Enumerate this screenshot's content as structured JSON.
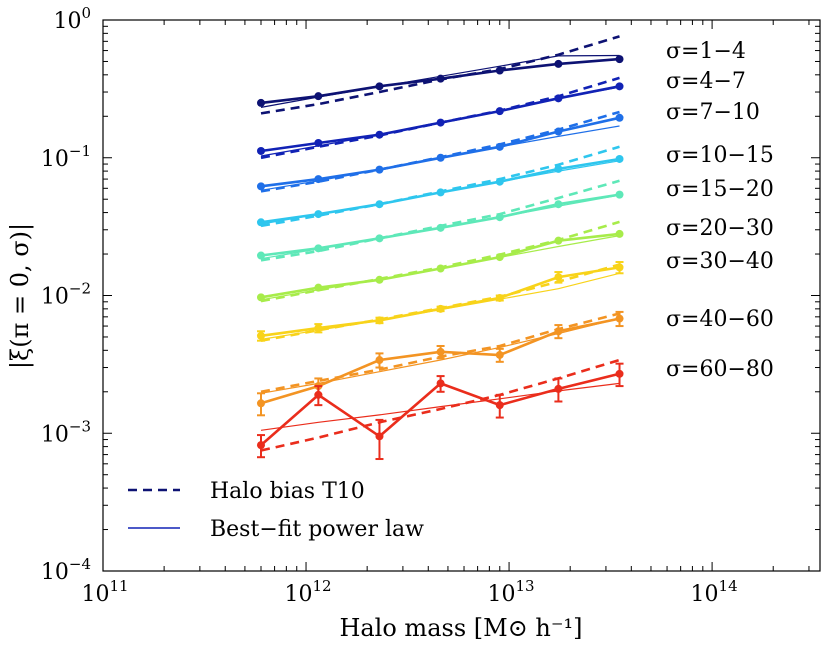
{
  "chart_data": {
    "type": "line",
    "xlabel": "Halo mass [M⊙ h⁻¹]",
    "ylabel": "|ξ(π = 0, σ)|",
    "xscale": "log",
    "yscale": "log",
    "xlim": [
      100000000000,
      340000000000000
    ],
    "ylim": [
      0.0001,
      1
    ],
    "x_ticks": [
      {
        "value": 100000000000,
        "base": "10",
        "exp": "11"
      },
      {
        "value": 1000000000000,
        "base": "10",
        "exp": "12"
      },
      {
        "value": 10000000000000,
        "base": "10",
        "exp": "13"
      },
      {
        "value": 100000000000000,
        "base": "10",
        "exp": "14"
      }
    ],
    "y_ticks": [
      {
        "value": 0.0001,
        "base": "10",
        "exp": "−4"
      },
      {
        "value": 0.001,
        "base": "10",
        "exp": "−3"
      },
      {
        "value": 0.01,
        "base": "10",
        "exp": "−2"
      },
      {
        "value": 0.1,
        "base": "10",
        "exp": "−1"
      },
      {
        "value": 1,
        "base": "10",
        "exp": "0"
      }
    ],
    "x": [
      600000000000.0,
      1150000000000.0,
      2300000000000.0,
      4600000000000.0,
      9000000000000.0,
      17500000000000.0,
      35000000000000.0
    ],
    "series": [
      {
        "name": "σ=1−4",
        "color": "#0d1273",
        "marker": "circle",
        "values": [
          0.25,
          0.28,
          0.33,
          0.375,
          0.43,
          0.48,
          0.52
        ],
        "errors": [
          0,
          0,
          0,
          0,
          0,
          0,
          0
        ],
        "bias": [
          0.21,
          0.245,
          0.3,
          0.37,
          0.44,
          0.56,
          0.76
        ],
        "fit": [
          0.232,
          0.276,
          0.328,
          0.39,
          0.462,
          0.549,
          0.552
        ]
      },
      {
        "name": "σ=4−7",
        "color": "#1122b5",
        "marker": "circle",
        "values": [
          0.112,
          0.128,
          0.147,
          0.18,
          0.218,
          0.27,
          0.33
        ],
        "errors": [
          0,
          0,
          0,
          0,
          0,
          0,
          0
        ],
        "bias": [
          0.1,
          0.12,
          0.145,
          0.18,
          0.22,
          0.28,
          0.38
        ],
        "fit": [
          0.103,
          0.122,
          0.147,
          0.18,
          0.22,
          0.27,
          0.325
        ]
      },
      {
        "name": "σ=7−10",
        "color": "#1f6fe8",
        "marker": "circle",
        "values": [
          0.062,
          0.07,
          0.082,
          0.1,
          0.12,
          0.155,
          0.195
        ],
        "errors": [
          0,
          0,
          0,
          0,
          0,
          0,
          0
        ],
        "bias": [
          0.057,
          0.067,
          0.082,
          0.101,
          0.125,
          0.16,
          0.215
        ],
        "fit": [
          0.058,
          0.068,
          0.082,
          0.1,
          0.12,
          0.143,
          0.17
        ]
      },
      {
        "name": "σ=10−15",
        "color": "#2ec6ee",
        "marker": "circle",
        "values": [
          0.034,
          0.039,
          0.046,
          0.056,
          0.067,
          0.083,
          0.098
        ],
        "errors": [
          0,
          0,
          0,
          0,
          0,
          0,
          0
        ],
        "bias": [
          0.032,
          0.038,
          0.046,
          0.057,
          0.07,
          0.089,
          0.12
        ],
        "fit": [
          0.033,
          0.039,
          0.046,
          0.056,
          0.067,
          0.08,
          0.095
        ]
      },
      {
        "name": "σ=15−20",
        "color": "#5ee8b8",
        "marker": "circle",
        "values": [
          0.0195,
          0.022,
          0.026,
          0.031,
          0.037,
          0.046,
          0.054
        ],
        "errors": [
          0,
          0,
          0,
          0,
          0,
          0,
          0
        ],
        "bias": [
          0.018,
          0.021,
          0.026,
          0.032,
          0.039,
          0.051,
          0.068
        ],
        "fit": [
          0.0185,
          0.0218,
          0.026,
          0.031,
          0.037,
          0.0445,
          0.0535
        ]
      },
      {
        "name": "σ=20−30",
        "color": "#a7ec4a",
        "marker": "circle",
        "values": [
          0.0097,
          0.0114,
          0.013,
          0.0157,
          0.019,
          0.025,
          0.028
        ],
        "errors": [
          0,
          0,
          0,
          0,
          0,
          0,
          0
        ],
        "bias": [
          0.0091,
          0.0109,
          0.0132,
          0.016,
          0.0198,
          0.0253,
          0.0342
        ],
        "fit": [
          0.0093,
          0.011,
          0.0131,
          0.0157,
          0.0189,
          0.0227,
          0.0272
        ]
      },
      {
        "name": "σ=30−40",
        "color": "#f8d31a",
        "marker": "circle",
        "values": [
          0.0051,
          0.0058,
          0.0066,
          0.008,
          0.0096,
          0.0136,
          0.016
        ],
        "errors": [
          0.0004,
          0.0004,
          0.0003,
          0.0003,
          0.0004,
          0.0012,
          0.0015
        ],
        "bias": [
          0.0047,
          0.0056,
          0.0067,
          0.0081,
          0.0098,
          0.0126,
          0.0168
        ],
        "fit": [
          0.0048,
          0.0056,
          0.0066,
          0.0079,
          0.0094,
          0.0112,
          0.0145
        ]
      },
      {
        "name": "σ=40−60",
        "color": "#f39423",
        "marker": "circle",
        "values": [
          0.00165,
          0.0022,
          0.0034,
          0.0039,
          0.0037,
          0.0055,
          0.0068
        ],
        "errors": [
          0.0003,
          0.0003,
          0.0004,
          0.0004,
          0.0004,
          0.0006,
          0.0008
        ],
        "bias": [
          0.002,
          0.0024,
          0.0029,
          0.0036,
          0.0043,
          0.0057,
          0.0074
        ],
        "fit": [
          0.00195,
          0.0023,
          0.0028,
          0.0034,
          0.0042,
          0.0053,
          0.0068
        ]
      },
      {
        "name": "σ=60−80",
        "color": "#ea2d1c",
        "marker": "circle",
        "values": [
          0.00082,
          0.0019,
          0.00095,
          0.0023,
          0.0016,
          0.0021,
          0.0027
        ],
        "errors": [
          0.00015,
          0.0003,
          0.0003,
          0.0003,
          0.0003,
          0.0004,
          0.0005
        ],
        "bias": [
          0.00075,
          0.00093,
          0.0012,
          0.0015,
          0.0019,
          0.0025,
          0.0034
        ],
        "fit": [
          0.00105,
          0.0012,
          0.00136,
          0.00156,
          0.00178,
          0.00203,
          0.0023
        ]
      }
    ],
    "legend": {
      "position": "bottom-left",
      "items": [
        {
          "label": "Halo bias T10",
          "style": "dashed",
          "color": "#0d1273"
        },
        {
          "label": "Best−fit power law",
          "style": "solid",
          "color": "#1122b5"
        }
      ]
    }
  }
}
